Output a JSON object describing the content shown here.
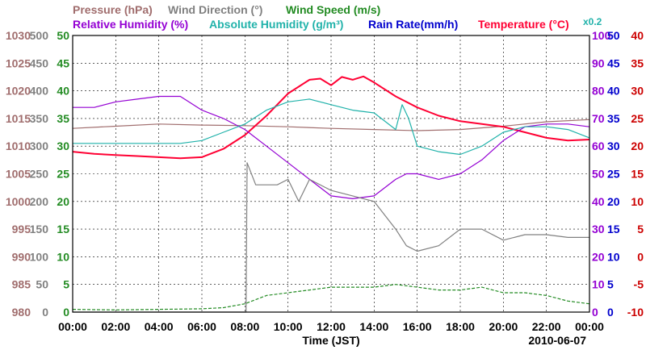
{
  "chart_data": {
    "type": "line",
    "date": "2010-06-07",
    "xlabel": "Time (JST)",
    "x_ticks": [
      "00:00",
      "02:00",
      "04:00",
      "06:00",
      "08:00",
      "10:00",
      "12:00",
      "14:00",
      "16:00",
      "18:00",
      "20:00",
      "22:00",
      "00:00"
    ],
    "legend": {
      "row1": [
        {
          "name": "Pressure (hPa)",
          "color": "#a06d6d"
        },
        {
          "name": "Wind Direction (°)",
          "color": "#808080"
        },
        {
          "name": "Wind Speed (m/s)",
          "color": "#228b22"
        }
      ],
      "row2": [
        {
          "name": "Relative Humidity (%)",
          "color": "#9400d3"
        },
        {
          "name": "Absolute Humidity (g/m³)",
          "color": "#20b2aa"
        },
        {
          "name": "Rain Rate(mm/h)",
          "color": "#0000cd"
        },
        {
          "name": "Temperature (°C)",
          "color": "#ff0033"
        }
      ],
      "note": "x0.2"
    },
    "axes": {
      "pressure": {
        "color": "#a06d6d",
        "ticks": [
          "1030",
          "1025",
          "1020",
          "1015",
          "1010",
          "1005",
          "1000",
          "995",
          "990",
          "985",
          "980"
        ],
        "range": [
          980,
          1030
        ]
      },
      "wind_direction": {
        "color": "#808080",
        "ticks": [
          "500",
          "450",
          "400",
          "350",
          "300",
          "250",
          "200",
          "150",
          "100",
          "50",
          "0"
        ],
        "range": [
          0,
          500
        ]
      },
      "wind_speed": {
        "color": "#228b22",
        "ticks": [
          "50",
          "45",
          "40",
          "35",
          "30",
          "25",
          "20",
          "15",
          "10",
          "5",
          "0"
        ],
        "range": [
          0,
          50
        ]
      },
      "humidity": {
        "color": "#9400d3",
        "ticks": [
          "100",
          "90",
          "80",
          "70",
          "60",
          "50",
          "40",
          "30",
          "20",
          "10",
          "0"
        ],
        "range": [
          0,
          100
        ]
      },
      "rain_rate": {
        "color": "#0000cd",
        "ticks": [
          "50",
          "45",
          "40",
          "35",
          "30",
          "25",
          "20",
          "15",
          "10",
          "5",
          "0"
        ],
        "range": [
          0,
          50
        ]
      },
      "temperature": {
        "color": "#cc0000",
        "ticks": [
          "40",
          "35",
          "30",
          "25",
          "20",
          "15",
          "10",
          "5",
          "0",
          "-5",
          "-10"
        ],
        "range": [
          -10,
          40
        ]
      }
    },
    "series": [
      {
        "name": "Pressure",
        "axis": "pressure",
        "color": "#a06d6d",
        "x": [
          0,
          2,
          4,
          6,
          8,
          10,
          12,
          14,
          16,
          18,
          20,
          22,
          24
        ],
        "y": [
          1013.2,
          1013.6,
          1014,
          1013.8,
          1013.7,
          1013.5,
          1013.2,
          1013,
          1012.8,
          1013,
          1013.6,
          1014.4,
          1014.8
        ]
      },
      {
        "name": "Temperature",
        "axis": "temperature",
        "color": "#ff0033",
        "x": [
          0,
          1,
          2,
          3,
          4,
          5,
          6,
          7,
          8,
          9,
          10,
          11,
          11.5,
          12,
          12.5,
          13,
          13.5,
          14,
          15,
          16,
          17,
          18,
          19,
          20,
          21,
          22,
          23,
          24
        ],
        "y": [
          19,
          18.6,
          18.4,
          18.2,
          18,
          17.8,
          18,
          19.5,
          22,
          25.5,
          29.5,
          32,
          32.2,
          31,
          32.5,
          32,
          32.6,
          31.5,
          29,
          27,
          25.5,
          24.5,
          24,
          23.5,
          22.5,
          21.5,
          21,
          21.2
        ]
      },
      {
        "name": "Relative Humidity",
        "axis": "humidity",
        "color": "#9400d3",
        "x": [
          0,
          1,
          2,
          3,
          4,
          5,
          6,
          7,
          8,
          9,
          10,
          11,
          12,
          13,
          14,
          15,
          15.5,
          16,
          17,
          18,
          19,
          20,
          21,
          22,
          23,
          24
        ],
        "y": [
          74,
          74,
          76,
          77,
          78,
          78,
          73,
          70,
          66,
          60,
          54,
          48,
          42,
          41,
          42,
          48,
          50,
          50,
          48,
          50,
          55,
          62,
          67,
          68,
          68,
          67
        ]
      },
      {
        "name": "Absolute Humidity",
        "axis": "humidity",
        "color": "#20b2aa",
        "x": [
          0,
          1,
          2,
          3,
          4,
          5,
          6,
          7,
          8,
          9,
          10,
          11,
          12,
          13,
          14,
          15,
          15.3,
          15.6,
          16,
          17,
          18,
          19,
          20,
          21,
          22,
          23,
          24
        ],
        "y": [
          61,
          61,
          61,
          61,
          61,
          61,
          62,
          65,
          68,
          73,
          76,
          77,
          75,
          73,
          72,
          66,
          75,
          70,
          60,
          58,
          57,
          60,
          65,
          67,
          67,
          66,
          63
        ]
      },
      {
        "name": "Wind Direction",
        "axis": "wind_direction",
        "color": "#808080",
        "x": [
          0,
          8.05,
          8.1,
          8.5,
          9,
          9.5,
          10,
          10.5,
          11,
          12,
          13,
          14,
          15,
          15.5,
          16,
          17,
          18,
          19,
          20,
          21,
          22,
          23,
          24
        ],
        "y": [
          0,
          0,
          270,
          230,
          230,
          230,
          240,
          200,
          240,
          220,
          210,
          200,
          150,
          120,
          110,
          120,
          150,
          150,
          130,
          140,
          140,
          135,
          135
        ]
      },
      {
        "name": "Wind Speed",
        "axis": "wind_speed",
        "color": "#228b22",
        "x": [
          0,
          2,
          4,
          6,
          7,
          8,
          9,
          10,
          11,
          12,
          13,
          14,
          15,
          16,
          17,
          18,
          19,
          20,
          21,
          22,
          23,
          24
        ],
        "y": [
          0.5,
          0.4,
          0.5,
          0.6,
          0.8,
          1.5,
          3,
          3.5,
          4,
          4.5,
          4.5,
          4.5,
          5,
          4.5,
          4,
          4,
          4.5,
          3.5,
          3.5,
          3,
          2,
          1.5
        ]
      }
    ]
  }
}
